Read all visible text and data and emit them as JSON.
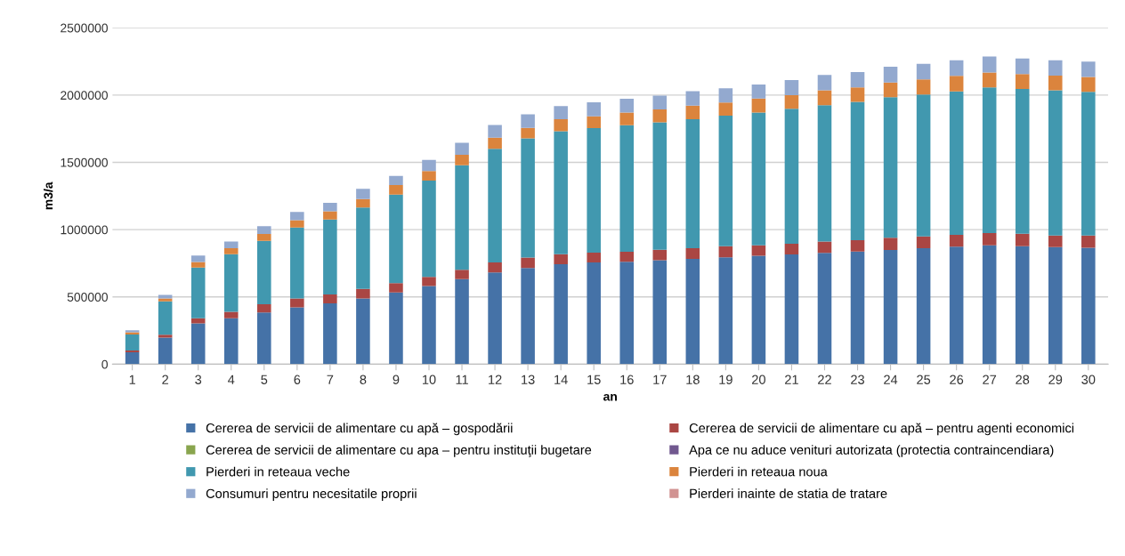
{
  "chart_data": {
    "type": "bar",
    "stacked": true,
    "xlabel": "an",
    "ylabel": "m3/a",
    "categories": [
      "1",
      "2",
      "3",
      "4",
      "5",
      "6",
      "7",
      "8",
      "9",
      "10",
      "11",
      "12",
      "13",
      "14",
      "15",
      "16",
      "17",
      "18",
      "19",
      "20",
      "21",
      "22",
      "23",
      "24",
      "25",
      "26",
      "27",
      "28",
      "29",
      "30"
    ],
    "ylim": [
      0,
      2500000
    ],
    "yticks": [
      0,
      500000,
      1000000,
      1500000,
      2000000,
      2500000
    ],
    "grid": "y",
    "legend": "bottom",
    "series": [
      {
        "name": "Cererea de servicii de alimentare cu apă – gospodării",
        "color": "#4572a7",
        "values": [
          88000,
          197000,
          303000,
          342000,
          384000,
          423000,
          452000,
          489000,
          533000,
          581000,
          632000,
          682000,
          715000,
          743000,
          757000,
          761000,
          772000,
          783000,
          794000,
          805000,
          816000,
          827000,
          838000,
          849000,
          862000,
          873000,
          884000,
          877000,
          871000,
          866000
        ]
      },
      {
        "name": "Cererea de servicii de alimentare cu apă – pentru agenti economici",
        "color": "#aa4643",
        "values": [
          13000,
          22000,
          39000,
          48000,
          61000,
          66000,
          66000,
          70000,
          70000,
          68000,
          70000,
          75000,
          77000,
          75000,
          72000,
          75000,
          79000,
          79000,
          83000,
          79000,
          79000,
          85000,
          83000,
          90000,
          88000,
          88000,
          90000,
          92000,
          85000,
          90000
        ]
      },
      {
        "name": "Cererea de servicii de alimentare cu apa – pentru instituţii bugetare",
        "color": "#89a54e",
        "values": [
          0,
          0,
          0,
          0,
          0,
          0,
          0,
          0,
          0,
          0,
          0,
          0,
          0,
          0,
          0,
          0,
          0,
          0,
          0,
          0,
          0,
          0,
          0,
          0,
          0,
          0,
          0,
          0,
          0,
          0
        ]
      },
      {
        "name": "Apa ce nu aduce venituri autorizata (protectia contraincendiara)",
        "color": "#71588f",
        "values": [
          0,
          0,
          0,
          0,
          0,
          0,
          0,
          0,
          0,
          0,
          0,
          0,
          0,
          0,
          0,
          0,
          0,
          0,
          0,
          0,
          0,
          0,
          0,
          0,
          0,
          0,
          0,
          0,
          0,
          0
        ]
      },
      {
        "name": "Pierderi in reteaua veche",
        "color": "#4198af",
        "values": [
          120000,
          248000,
          377000,
          428000,
          472000,
          526000,
          557000,
          606000,
          658000,
          715000,
          776000,
          844000,
          886000,
          914000,
          925000,
          940000,
          947000,
          958000,
          970000,
          987000,
          1004000,
          1013000,
          1029000,
          1046000,
          1054000,
          1067000,
          1083000,
          1077000,
          1079000,
          1068000
        ]
      },
      {
        "name": "Pierderi in reteaua noua",
        "color": "#db843d",
        "values": [
          16000,
          22000,
          40000,
          44000,
          50000,
          55000,
          61000,
          63000,
          70000,
          72000,
          79000,
          83000,
          79000,
          88000,
          88000,
          95000,
          95000,
          101000,
          98000,
          103000,
          101000,
          110000,
          107000,
          109000,
          112000,
          115000,
          110000,
          110000,
          110000,
          110000
        ]
      },
      {
        "name": "Consumuri pentru necesitatile proprii",
        "color": "#93a9cf",
        "values": [
          15000,
          26000,
          48000,
          50000,
          59000,
          62000,
          64000,
          75000,
          68000,
          82000,
          88000,
          94000,
          100000,
          99000,
          105000,
          101000,
          103000,
          108000,
          105000,
          105000,
          112000,
          114000,
          114000,
          117000,
          116000,
          116000,
          120000,
          116000,
          114000,
          114000
        ]
      },
      {
        "name": "Pierderi inainte de statia de tratare",
        "color": "#d19392",
        "values": [
          0,
          0,
          0,
          0,
          0,
          0,
          0,
          0,
          0,
          0,
          0,
          0,
          0,
          0,
          0,
          0,
          0,
          0,
          0,
          0,
          0,
          0,
          0,
          0,
          0,
          0,
          0,
          0,
          0,
          0
        ]
      }
    ]
  }
}
